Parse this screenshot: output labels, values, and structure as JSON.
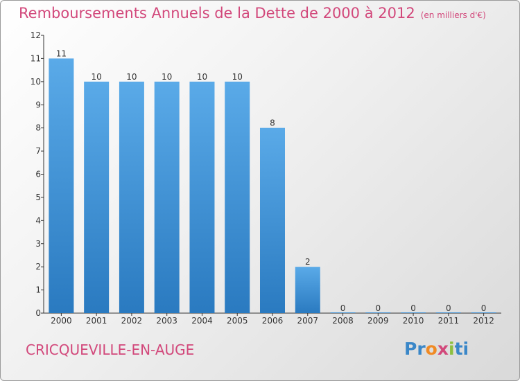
{
  "header": {
    "title": "Remboursements Annuels de la Dette de 2000 à 2012",
    "unit": "(en milliers d'€)"
  },
  "footer": {
    "place": "CRICQUEVILLE-EN-AUGE",
    "logo": {
      "letters": [
        "P",
        "r",
        "o",
        "x",
        "i",
        "t",
        "i"
      ],
      "colors": [
        "#3a87c8",
        "#3a87c8",
        "#f08a24",
        "#d2487b",
        "#8dc03f",
        "#3a87c8",
        "#3a87c8"
      ]
    }
  },
  "chart_data": {
    "type": "bar",
    "title": "Remboursements Annuels de la Dette de 2000 à 2012",
    "subtitle": "(en milliers d'€)",
    "categories": [
      "2000",
      "2001",
      "2002",
      "2003",
      "2004",
      "2005",
      "2006",
      "2007",
      "2008",
      "2009",
      "2010",
      "2011",
      "2012"
    ],
    "values": [
      11,
      10,
      10,
      10,
      10,
      10,
      8,
      2,
      0,
      0,
      0,
      0,
      0
    ],
    "ylim": [
      0,
      12
    ],
    "yticks": [
      0,
      1,
      2,
      3,
      4,
      5,
      6,
      7,
      8,
      9,
      10,
      11,
      12
    ],
    "grid": false,
    "bar_color": "#3a8fd6",
    "axis_color": "#333333",
    "text_color": "#333333"
  }
}
